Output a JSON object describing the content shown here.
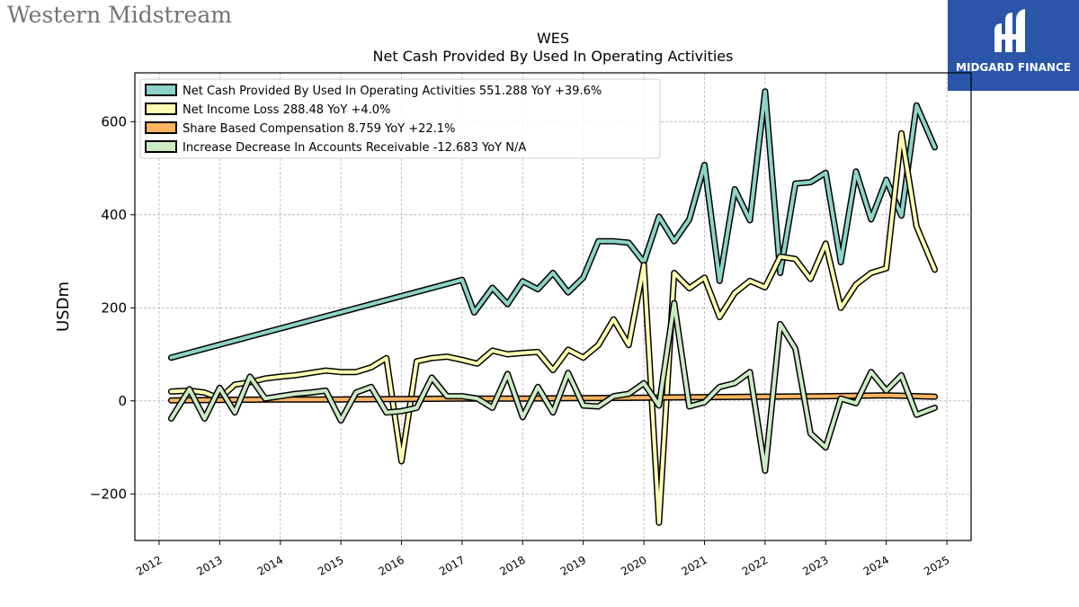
{
  "header": {
    "company_logo_text": "Western Midstream",
    "badge_text": "MIDGARD FINANCE"
  },
  "chart_data": {
    "type": "line",
    "title": "WES",
    "subtitle": "Net Cash Provided By Used In Operating Activities",
    "ylabel": "USDm",
    "xlabel": "",
    "xlim": [
      2011.6,
      2025.4
    ],
    "ylim": [
      -300,
      705
    ],
    "grid": true,
    "legend_position": "top-left",
    "x_ticks": [
      2012,
      2013,
      2014,
      2015,
      2016,
      2017,
      2018,
      2019,
      2020,
      2021,
      2022,
      2023,
      2024,
      2025
    ],
    "y_ticks": [
      -200,
      0,
      200,
      400,
      600
    ],
    "y_tick_labels": [
      "−200",
      "0",
      "200",
      "400",
      "600"
    ],
    "series": [
      {
        "name": "Net Cash Provided By Used In Operating Activities",
        "legend": "Net Cash Provided By Used In Operating Activities  551.288 YoY +39.6%",
        "color": "#8dd3c7",
        "x": [
          2012.2,
          2017.0,
          2017.2,
          2017.5,
          2017.75,
          2018.0,
          2018.25,
          2018.5,
          2018.75,
          2019.0,
          2019.25,
          2019.5,
          2019.75,
          2020.0,
          2020.25,
          2020.5,
          2020.75,
          2021.0,
          2021.25,
          2021.5,
          2021.75,
          2022.0,
          2022.25,
          2022.5,
          2022.75,
          2023.0,
          2023.25,
          2023.5,
          2023.75,
          2024.0,
          2024.25,
          2024.5,
          2024.8
        ],
        "values": [
          93,
          260,
          190,
          243,
          208,
          257,
          240,
          275,
          233,
          265,
          343,
          343,
          340,
          298,
          396,
          343,
          390,
          507,
          258,
          455,
          388,
          665,
          275,
          467,
          470,
          490,
          298,
          493,
          390,
          475,
          398,
          635,
          545
        ]
      },
      {
        "name": "Net Income Loss",
        "legend": "Net Income Loss  288.48 YoY +4.0%",
        "color": "#ffffb3",
        "x": [
          2012.2,
          2012.5,
          2012.75,
          2013.0,
          2013.25,
          2013.5,
          2013.75,
          2014.0,
          2014.25,
          2014.5,
          2014.75,
          2015.0,
          2015.25,
          2015.5,
          2015.75,
          2016.0,
          2016.25,
          2016.5,
          2016.75,
          2017.0,
          2017.25,
          2017.5,
          2017.75,
          2018.0,
          2018.25,
          2018.5,
          2018.75,
          2019.0,
          2019.25,
          2019.5,
          2019.75,
          2020.0,
          2020.25,
          2020.5,
          2020.75,
          2021.0,
          2021.25,
          2021.5,
          2021.75,
          2022.0,
          2022.25,
          2022.5,
          2022.75,
          2023.0,
          2023.25,
          2023.5,
          2023.75,
          2024.0,
          2024.25,
          2024.5,
          2024.8
        ],
        "values": [
          20,
          22,
          18,
          5,
          35,
          40,
          48,
          52,
          55,
          60,
          65,
          62,
          62,
          72,
          92,
          -130,
          85,
          92,
          95,
          88,
          80,
          108,
          100,
          103,
          105,
          66,
          110,
          93,
          120,
          175,
          120,
          292,
          -262,
          275,
          242,
          265,
          180,
          232,
          258,
          244,
          310,
          305,
          262,
          338,
          200,
          250,
          275,
          285,
          575,
          375,
          282
        ]
      },
      {
        "name": "Share Based Compensation",
        "legend": "Share Based Compensation  8.759 YoY +22.1%",
        "color": "#fdb462",
        "x": [
          2012.2,
          2013.0,
          2014.0,
          2015.0,
          2016.0,
          2017.0,
          2018.0,
          2019.0,
          2020.0,
          2021.0,
          2022.0,
          2023.0,
          2024.0,
          2024.8
        ],
        "values": [
          1,
          2,
          3,
          3,
          4,
          5,
          5,
          6,
          7,
          8,
          9,
          10,
          12,
          9
        ]
      },
      {
        "name": "Increase Decrease In Accounts Receivable",
        "legend": "Increase Decrease In Accounts Receivable  -12.683 YoY N/A",
        "color": "#ccebc5",
        "x": [
          2012.2,
          2012.5,
          2012.75,
          2013.0,
          2013.25,
          2013.5,
          2013.75,
          2014.0,
          2014.25,
          2014.5,
          2014.75,
          2015.0,
          2015.25,
          2015.5,
          2015.75,
          2016.0,
          2016.25,
          2016.5,
          2016.75,
          2017.0,
          2017.25,
          2017.5,
          2017.75,
          2018.0,
          2018.25,
          2018.5,
          2018.75,
          2019.0,
          2019.25,
          2019.5,
          2019.75,
          2020.0,
          2020.25,
          2020.5,
          2020.75,
          2021.0,
          2021.25,
          2021.5,
          2021.75,
          2022.0,
          2022.25,
          2022.5,
          2022.75,
          2023.0,
          2023.25,
          2023.5,
          2023.75,
          2024.0,
          2024.25,
          2024.5,
          2024.8
        ],
        "values": [
          -38,
          25,
          -38,
          28,
          -25,
          52,
          5,
          10,
          15,
          18,
          22,
          -42,
          18,
          30,
          -25,
          -22,
          -15,
          50,
          10,
          10,
          5,
          -15,
          58,
          -35,
          30,
          -25,
          60,
          -10,
          -12,
          10,
          15,
          38,
          -10,
          210,
          -12,
          -3,
          30,
          38,
          62,
          -150,
          165,
          112,
          -70,
          -100,
          5,
          -5,
          62,
          22,
          55,
          -30,
          -15
        ]
      }
    ]
  }
}
